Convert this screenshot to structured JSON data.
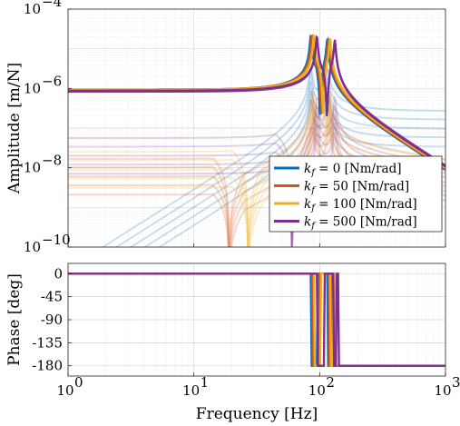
{
  "chart_data": [
    {
      "type": "line",
      "panel": "amplitude",
      "xlabel": "",
      "ylabel": "Amplitude [m/N]",
      "xscale": "log",
      "yscale": "log",
      "xlim": [
        1,
        1000
      ],
      "ylim": [
        1e-10,
        0.0001
      ],
      "grid": true,
      "legend_position": "lower-right",
      "y_ticks": [
        {
          "value": 1e-10,
          "label": "10",
          "exp": "−10"
        },
        {
          "value": 1e-08,
          "label": "10",
          "exp": "−8"
        },
        {
          "value": 1e-06,
          "label": "10",
          "exp": "−6"
        },
        {
          "value": 0.0001,
          "label": "10",
          "exp": "−4"
        }
      ],
      "series": [
        {
          "name": "k_f = 0 [Nm/rad]",
          "legend_math": "k",
          "legend_sub": "f",
          "legend_rest": " = 0 [Nm/rad]",
          "color": "#0072BD",
          "kf": 0,
          "low_freq_amplitude": 9e-07,
          "resonances_hz": [
            85,
            115
          ],
          "cross_coupling_low_freq": 1e-11
        },
        {
          "name": "k_f = 50 [Nm/rad]",
          "legend_math": "k",
          "legend_sub": "f",
          "legend_rest": " = 50 [Nm/rad]",
          "color": "#D95319",
          "kf": 50,
          "low_freq_amplitude": 9e-07,
          "resonances_hz": [
            87,
            118
          ],
          "cross_coupling_low_freq": 6e-09,
          "cross_coupling_notch_hz": 19
        },
        {
          "name": "k_f = 100 [Nm/rad]",
          "legend_math": "k",
          "legend_sub": "f",
          "legend_rest": " = 100 [Nm/rad]",
          "color": "#EDB120",
          "kf": 100,
          "low_freq_amplitude": 9e-07,
          "resonances_hz": [
            90,
            121
          ],
          "cross_coupling_low_freq": 9e-09,
          "cross_coupling_notch_hz": 27
        },
        {
          "name": "k_f = 500 [Nm/rad]",
          "legend_math": "k",
          "legend_sub": "f",
          "legend_rest": " = 500 [Nm/rad]",
          "color": "#7E2F8E",
          "kf": 500,
          "low_freq_amplitude": 8.5e-07,
          "resonances_hz": [
            95,
            132
          ],
          "cross_coupling_low_freq": 2e-08,
          "cross_coupling_notch_hz": 60
        }
      ]
    },
    {
      "type": "line",
      "panel": "phase",
      "xlabel": "Frequency [Hz]",
      "ylabel": "Phase [deg]",
      "xscale": "log",
      "xlim": [
        1,
        1000
      ],
      "ylim": [
        -200,
        20
      ],
      "grid": true,
      "x_ticks": [
        {
          "value": 1,
          "label": "10",
          "exp": "0"
        },
        {
          "value": 10,
          "label": "10",
          "exp": "1"
        },
        {
          "value": 100,
          "label": "10",
          "exp": "2"
        },
        {
          "value": 1000,
          "label": "10",
          "exp": "3"
        }
      ],
      "y_ticks": [
        0,
        -45,
        -90,
        -135,
        -180
      ],
      "series": [
        {
          "name": "k_f = 0 [Nm/rad]",
          "color": "#0072BD",
          "phase_low": 0,
          "phase_high": -180,
          "transitions_hz": [
            85,
            95,
            115,
            122
          ]
        },
        {
          "name": "k_f = 50 [Nm/rad]",
          "color": "#D95319",
          "phase_low": 0,
          "phase_high": -180,
          "transitions_hz": [
            87,
            98,
            118,
            126
          ]
        },
        {
          "name": "k_f = 100 [Nm/rad]",
          "color": "#EDB120",
          "phase_low": 0,
          "phase_high": -180,
          "transitions_hz": [
            90,
            101,
            121,
            131
          ]
        },
        {
          "name": "k_f = 500 [Nm/rad]",
          "color": "#7E2F8E",
          "phase_low": 0,
          "phase_high": -180,
          "transitions_hz": [
            95,
            108,
            128,
            140
          ]
        }
      ]
    }
  ]
}
